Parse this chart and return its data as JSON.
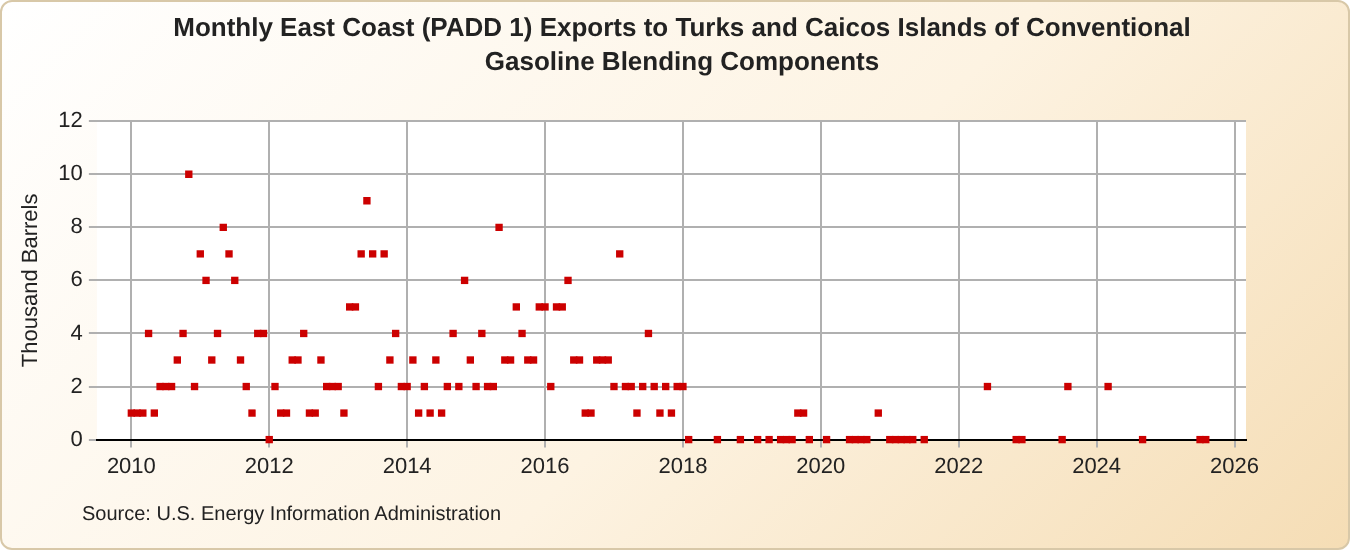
{
  "chart_data": {
    "type": "scatter",
    "title": "Monthly East Coast (PADD 1) Exports to Turks and Caicos Islands of Conventional Gasoline Blending Components",
    "ylabel": "Thousand Barrels",
    "annotations": [
      "Source: U.S. Energy Information Administration"
    ],
    "x": [
      "2010-01",
      "2010-02",
      "2010-03",
      "2010-04",
      "2010-05",
      "2010-06",
      "2010-07",
      "2010-08",
      "2010-09",
      "2010-10",
      "2010-11",
      "2010-12",
      "2011-01",
      "2011-02",
      "2011-03",
      "2011-04",
      "2011-05",
      "2011-06",
      "2011-07",
      "2011-08",
      "2011-09",
      "2011-10",
      "2011-11",
      "2011-12",
      "2012-01",
      "2012-02",
      "2012-03",
      "2012-04",
      "2012-05",
      "2012-06",
      "2012-07",
      "2012-08",
      "2012-09",
      "2012-10",
      "2012-11",
      "2012-12",
      "2013-01",
      "2013-02",
      "2013-03",
      "2013-04",
      "2013-05",
      "2013-06",
      "2013-07",
      "2013-08",
      "2013-09",
      "2013-10",
      "2013-11",
      "2013-12",
      "2014-01",
      "2014-02",
      "2014-03",
      "2014-04",
      "2014-05",
      "2014-06",
      "2014-07",
      "2014-08",
      "2014-09",
      "2014-10",
      "2014-11",
      "2014-12",
      "2015-01",
      "2015-02",
      "2015-03",
      "2015-04",
      "2015-05",
      "2015-06",
      "2015-07",
      "2015-08",
      "2015-09",
      "2015-10",
      "2015-11",
      "2015-12",
      "2016-01",
      "2016-02",
      "2016-03",
      "2016-04",
      "2016-05",
      "2016-06",
      "2016-07",
      "2016-08",
      "2016-09",
      "2016-10",
      "2016-11",
      "2016-12",
      "2017-01",
      "2017-02",
      "2017-03",
      "2017-04",
      "2017-05",
      "2017-06",
      "2017-07",
      "2017-08",
      "2017-09",
      "2017-10",
      "2017-11",
      "2017-12",
      "2018-01",
      "2018-02",
      "2018-07",
      "2018-11",
      "2019-02",
      "2019-04",
      "2019-06",
      "2019-07",
      "2019-08",
      "2019-09",
      "2019-10",
      "2019-11",
      "2020-02",
      "2020-06",
      "2020-07",
      "2020-08",
      "2020-09",
      "2020-11",
      "2021-01",
      "2021-02",
      "2021-03",
      "2021-04",
      "2021-05",
      "2021-07",
      "2022-06",
      "2022-11",
      "2022-12",
      "2023-07",
      "2023-08",
      "2024-03",
      "2024-09",
      "2025-07",
      "2025-08"
    ],
    "series": [
      {
        "color": "#cc0000",
        "values": [
          1,
          1,
          1,
          4,
          1,
          2,
          2,
          2,
          3,
          4,
          10,
          2,
          7,
          6,
          3,
          4,
          8,
          7,
          6,
          3,
          2,
          1,
          4,
          4,
          0,
          2,
          1,
          1,
          3,
          3,
          4,
          1,
          1,
          3,
          2,
          2,
          2,
          1,
          5,
          5,
          7,
          9,
          7,
          2,
          7,
          3,
          4,
          2,
          2,
          3,
          1,
          2,
          1,
          3,
          1,
          2,
          4,
          2,
          6,
          3,
          2,
          4,
          2,
          2,
          8,
          3,
          3,
          5,
          4,
          3,
          3,
          5,
          5,
          2,
          5,
          5,
          6,
          3,
          3,
          1,
          1,
          3,
          3,
          3,
          2,
          7,
          2,
          2,
          1,
          2,
          4,
          2,
          1,
          2,
          1,
          2,
          2,
          0,
          0,
          0,
          0,
          0,
          0,
          0,
          0,
          1,
          1,
          0,
          0,
          0,
          0,
          0,
          0,
          1,
          0,
          0,
          0,
          0,
          0,
          0,
          2,
          0,
          0,
          0,
          2,
          2,
          0,
          0,
          0
        ]
      }
    ],
    "xlim": [
      "2009-07",
      "2026-03"
    ],
    "xticks": [
      "2010",
      "2012",
      "2014",
      "2016",
      "2018",
      "2020",
      "2022",
      "2024",
      "2026"
    ],
    "ylim": [
      0,
      12
    ],
    "yticks": [
      0,
      2,
      4,
      6,
      8,
      10,
      12
    ],
    "grid": true,
    "marker": "square"
  }
}
